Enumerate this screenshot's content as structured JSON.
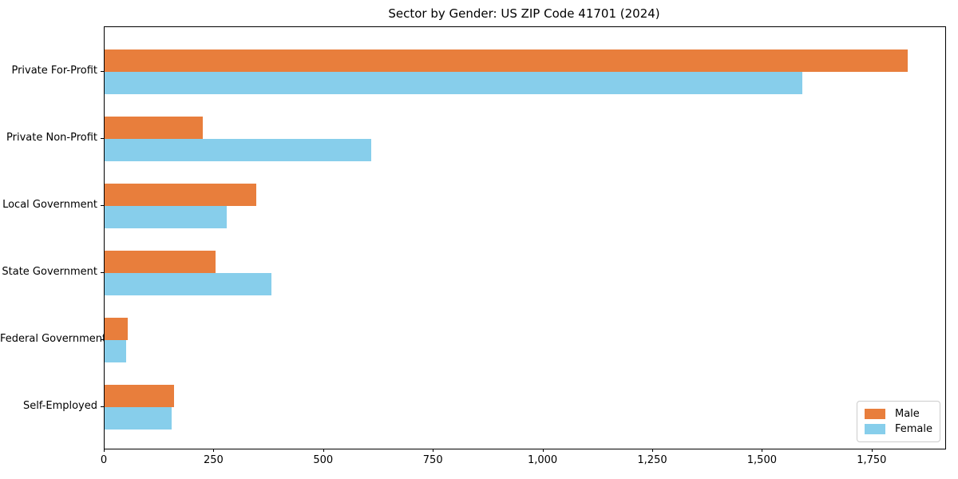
{
  "chart_data": {
    "type": "bar",
    "orientation": "horizontal",
    "title": "Sector by Gender: US ZIP Code 41701 (2024)",
    "categories": [
      "Private For-Profit",
      "Private Non-Profit",
      "Local Government",
      "State Government",
      "Federal Government",
      "Self-Employed"
    ],
    "series": [
      {
        "name": "Male",
        "color": "#E87E3C",
        "values": [
          1830,
          223,
          345,
          253,
          53,
          158
        ]
      },
      {
        "name": "Female",
        "color": "#87CEEB",
        "values": [
          1590,
          608,
          278,
          380,
          49,
          152
        ]
      }
    ],
    "xlabel": "",
    "ylabel": "",
    "xlim": [
      0,
      1916
    ],
    "xticks": [
      0,
      250,
      500,
      750,
      1000,
      1250,
      1500,
      1750
    ],
    "xtick_labels": [
      "0",
      "250",
      "500",
      "750",
      "1,000",
      "1,250",
      "1,500",
      "1,750"
    ],
    "grid": false,
    "legend": {
      "position": "lower right",
      "entries": [
        "Male",
        "Female"
      ]
    },
    "colors": {
      "axis": "#000000",
      "legend_border": "#cccccc",
      "background": "#ffffff"
    }
  }
}
